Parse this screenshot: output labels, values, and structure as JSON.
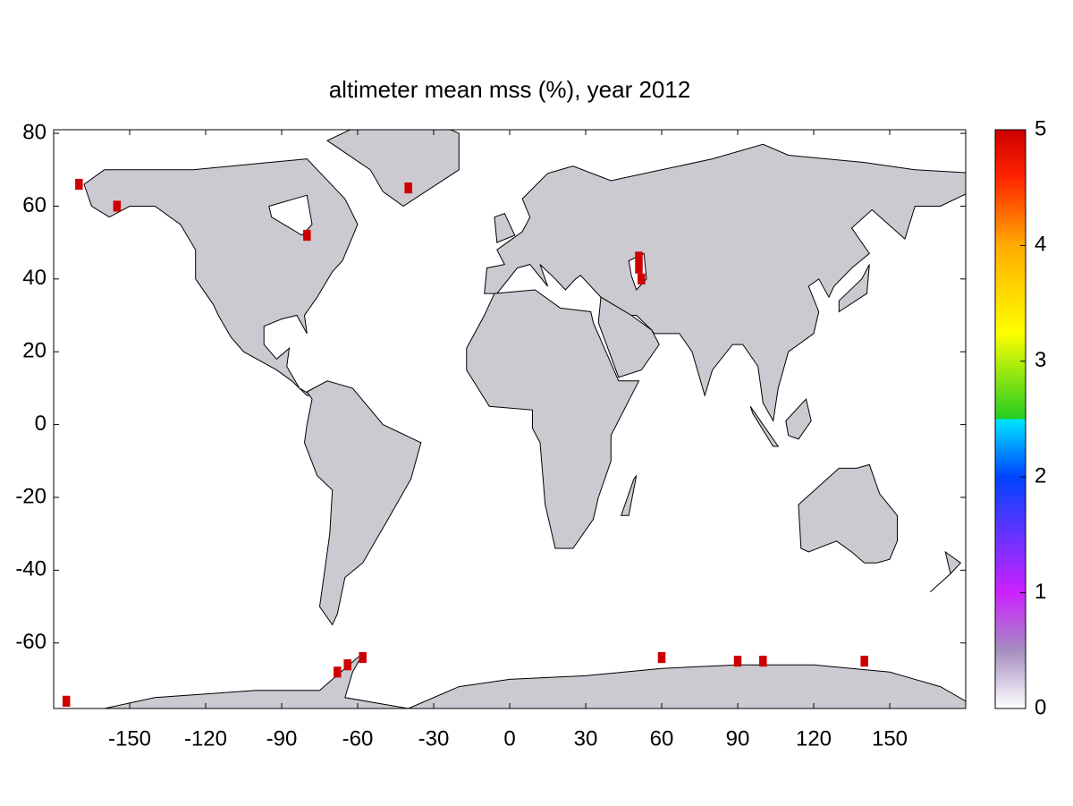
{
  "chart_data": {
    "type": "map",
    "title": "altimeter mean mss (%), year 2012",
    "xlim": [
      -180,
      180
    ],
    "ylim": [
      -78,
      81
    ],
    "xticks": [
      -150,
      -120,
      -90,
      -60,
      -30,
      0,
      30,
      60,
      90,
      120,
      150
    ],
    "yticks": [
      -60,
      -40,
      -20,
      0,
      20,
      40,
      60,
      80
    ],
    "colorbar": {
      "lim": [
        0,
        5
      ],
      "ticks": [
        0,
        1,
        2,
        3,
        4,
        5
      ]
    },
    "cells": {
      "lon": [
        51,
        51,
        52,
        -68,
        -64,
        -58,
        60,
        90,
        100,
        140,
        -155,
        -170,
        -40,
        -80,
        -175
      ],
      "lat": [
        43,
        46,
        40,
        -68,
        -66,
        -64,
        -64,
        -65,
        -65,
        -65,
        60,
        66,
        65,
        52,
        -76
      ],
      "values": [
        5,
        5,
        5,
        5,
        5,
        5,
        5,
        5,
        5,
        5,
        5,
        5,
        5,
        5,
        5
      ]
    }
  }
}
